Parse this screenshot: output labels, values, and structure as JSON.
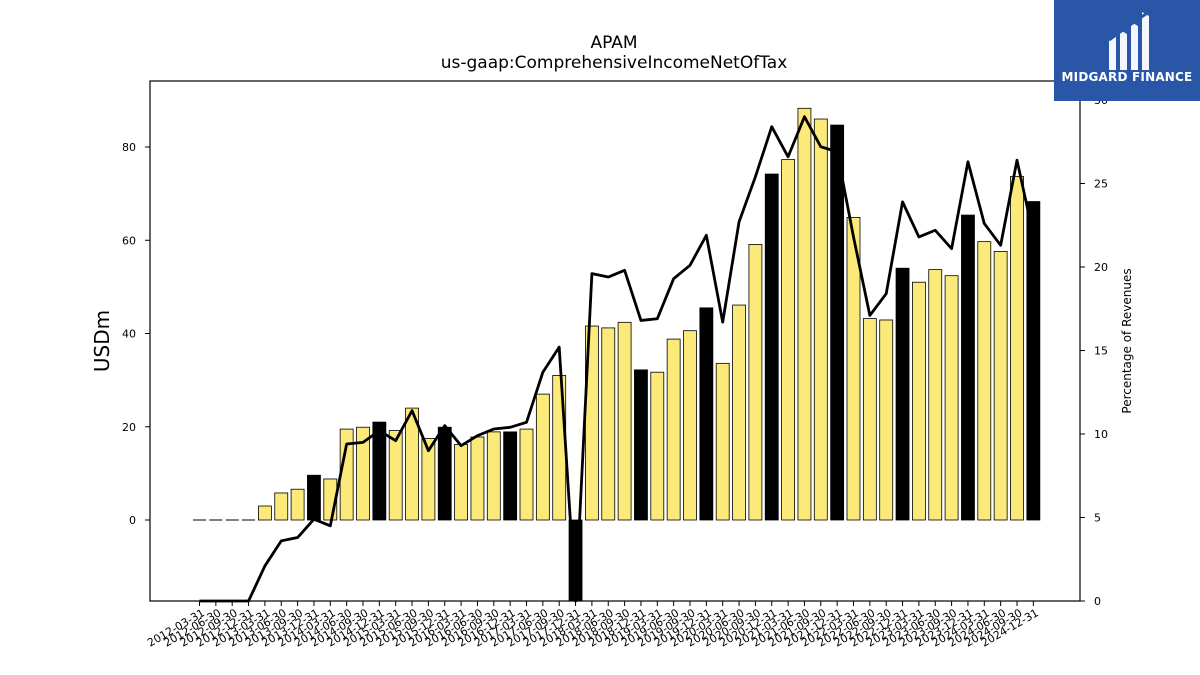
{
  "chart_data": {
    "type": "bar",
    "title": "APAM",
    "subtitle": "us-gaap:ComprehensiveIncomeNetOfTax",
    "ylabel": "USDm",
    "y2label": "Percentage of Revenues",
    "ylim": [
      -17.5,
      94
    ],
    "y2lim": [
      0,
      30.5
    ],
    "yticks": [
      0,
      20,
      40,
      60,
      80
    ],
    "y2ticks": [
      0,
      5,
      10,
      15,
      20,
      25,
      30
    ],
    "categories": [
      "2012-03-31",
      "2012-06-30",
      "2012-09-30",
      "2012-12-31",
      "2013-03-31",
      "2013-06-30",
      "2013-09-30",
      "2013-12-31",
      "2014-03-31",
      "2014-06-30",
      "2014-09-30",
      "2014-12-31",
      "2015-03-31",
      "2015-06-30",
      "2015-09-30",
      "2015-12-31",
      "2016-03-31",
      "2016-06-30",
      "2016-09-30",
      "2016-12-31",
      "2017-03-31",
      "2017-06-30",
      "2017-09-30",
      "2017-12-31",
      "2018-03-31",
      "2018-06-30",
      "2018-09-30",
      "2018-12-31",
      "2019-03-31",
      "2019-06-30",
      "2019-09-30",
      "2019-12-31",
      "2020-03-31",
      "2020-06-30",
      "2020-09-30",
      "2020-12-31",
      "2021-03-31",
      "2021-06-30",
      "2021-09-30",
      "2021-12-31",
      "2022-03-31",
      "2022-06-30",
      "2022-09-30",
      "2022-12-31",
      "2023-03-31",
      "2023-06-30",
      "2023-09-30",
      "2023-12-31",
      "2024-03-31",
      "2024-06-30",
      "2024-09-30",
      "2024-12-31"
    ],
    "series": [
      {
        "type": "bar",
        "values": [
          0,
          0,
          0,
          0,
          3.0,
          5.8,
          6.6,
          9.6,
          8.8,
          19.5,
          19.9,
          21.0,
          19.2,
          24.0,
          17.5,
          19.9,
          16.2,
          17.8,
          18.9,
          18.9,
          19.5,
          27.0,
          31.0,
          -17.5,
          41.6,
          41.2,
          42.4,
          32.2,
          31.7,
          38.8,
          40.6,
          45.5,
          33.6,
          46.1,
          59.1,
          74.2,
          77.3,
          88.3,
          86.0,
          84.7,
          64.9,
          43.2,
          42.9,
          54.0,
          51.0,
          53.7,
          52.4,
          65.4,
          59.7,
          57.6,
          73.7,
          68.3
        ]
      },
      {
        "type": "line",
        "axis": "right",
        "values": [
          0,
          0,
          0,
          0,
          2.1,
          3.6,
          3.8,
          4.9,
          4.5,
          9.4,
          9.5,
          10.2,
          9.6,
          11.4,
          9.0,
          10.5,
          9.3,
          9.9,
          10.3,
          10.4,
          10.7,
          13.7,
          15.2,
          0,
          19.6,
          19.4,
          19.8,
          16.8,
          16.9,
          19.3,
          20.1,
          21.9,
          16.7,
          22.7,
          25.4,
          28.4,
          26.6,
          29.0,
          27.2,
          26.9,
          21.8,
          17.1,
          18.4,
          23.9,
          21.8,
          22.2,
          21.1,
          26.3,
          22.6,
          21.3,
          26.4,
          21.9
        ]
      }
    ],
    "highlight_color": "#000000",
    "bar_color": "#fbe97a",
    "highlight_quarter": "12-31",
    "line_color": "#000000",
    "grid": false
  },
  "logo": {
    "name": "MIDGARD FINANCE",
    "background": "#2a56a8"
  }
}
